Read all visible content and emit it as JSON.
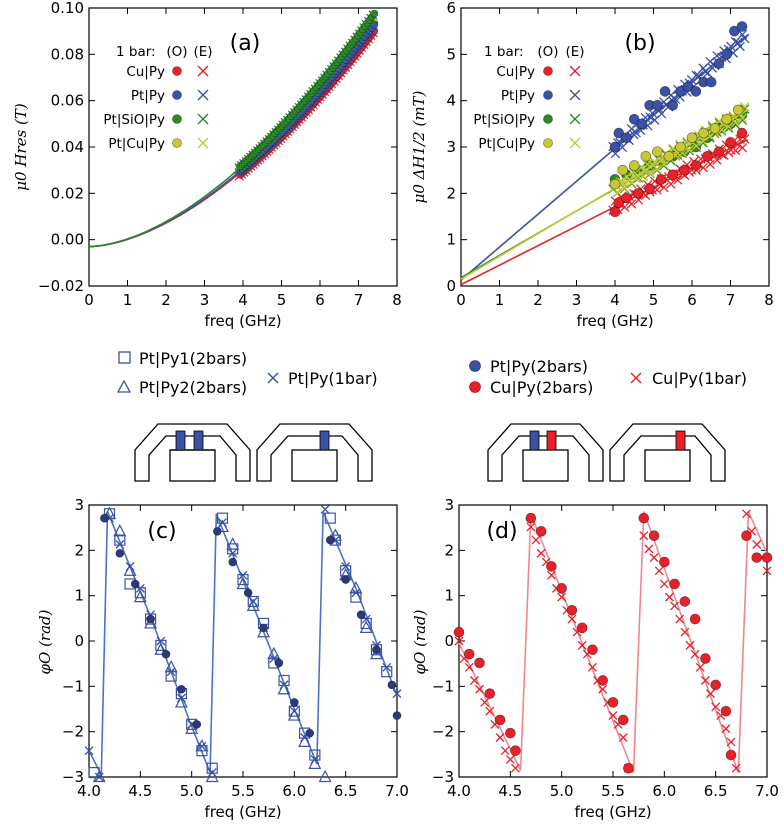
{
  "chart_data": [
    {
      "id": "a",
      "type": "scatter",
      "panel_label": "(a)",
      "xlabel": "freq (GHz)",
      "ylabel": "μ0 Hres (T)",
      "xlim": [
        0,
        8
      ],
      "ylim": [
        -0.02,
        0.1
      ],
      "xticks": [
        "0",
        "1",
        "2",
        "3",
        "4",
        "5",
        "6",
        "7",
        "8"
      ],
      "yticks": [
        "−0.02",
        "0.00",
        "0.02",
        "0.04",
        "0.06",
        "0.08",
        "0.10"
      ],
      "legend": {
        "title": "1 bar:",
        "col_o": "(O)",
        "col_e": "(E)",
        "entries": [
          {
            "name": "Cu|Py",
            "color": "#e8202a"
          },
          {
            "name": "Pt|Py",
            "color": "#3a52a4"
          },
          {
            "name": "Pt|SiO|Py",
            "color": "#2a8a2a"
          },
          {
            "name": "Pt|Cu|Py",
            "color": "#c8c832"
          }
        ]
      },
      "series": [
        {
          "name": "Cu|Py",
          "fit_x": [
            0,
            4,
            5,
            6,
            7.4
          ],
          "fit_y": [
            -0.003,
            0.028,
            0.043,
            0.06,
            0.091
          ]
        },
        {
          "name": "Pt|Py",
          "fit_x": [
            0,
            4,
            5,
            6,
            7.4
          ],
          "fit_y": [
            -0.003,
            0.028,
            0.044,
            0.062,
            0.093
          ]
        },
        {
          "name": "Pt|SiO|Py",
          "fit_x": [
            0,
            4,
            5,
            6,
            7.4
          ],
          "fit_y": [
            -0.003,
            0.029,
            0.046,
            0.065,
            0.097
          ]
        },
        {
          "name": "Pt|Cu|Py",
          "fit_x": [
            0,
            4,
            5,
            6,
            7.4
          ],
          "fit_y": [
            -0.003,
            0.027,
            0.042,
            0.06,
            0.092
          ]
        }
      ]
    },
    {
      "id": "b",
      "type": "scatter",
      "panel_label": "(b)",
      "xlabel": "freq (GHz)",
      "ylabel": "μ0 ΔH1/2 (mT)",
      "xlim": [
        0,
        8
      ],
      "ylim": [
        0,
        6
      ],
      "xticks": [
        "0",
        "1",
        "2",
        "3",
        "4",
        "5",
        "6",
        "7",
        "8"
      ],
      "yticks": [
        "0",
        "1",
        "2",
        "3",
        "4",
        "5",
        "6"
      ],
      "legend": {
        "title": "1 bar:",
        "col_o": "(O)",
        "col_e": "(E)",
        "entries": [
          {
            "name": "Cu|Py",
            "color": "#e8202a"
          },
          {
            "name": "Pt|Py",
            "color": "#3a52a4"
          },
          {
            "name": "Pt|SiO|Py",
            "color": "#2a8a2a"
          },
          {
            "name": "Pt|Cu|Py",
            "color": "#c8c832"
          }
        ]
      },
      "series": [
        {
          "name": "Pt|Py",
          "intercept": 0.13,
          "slope": 0.71,
          "o_points": [
            [
              4.0,
              3.0
            ],
            [
              4.1,
              3.3
            ],
            [
              4.3,
              3.2
            ],
            [
              4.5,
              3.6
            ],
            [
              4.7,
              3.5
            ],
            [
              4.9,
              3.9
            ],
            [
              5.1,
              3.9
            ],
            [
              5.3,
              4.2
            ],
            [
              5.5,
              3.9
            ],
            [
              5.7,
              4.2
            ],
            [
              5.9,
              4.3
            ],
            [
              6.1,
              4.2
            ],
            [
              6.3,
              4.4
            ],
            [
              6.5,
              4.4
            ],
            [
              6.7,
              4.8
            ],
            [
              6.9,
              5.0
            ],
            [
              7.1,
              5.5
            ],
            [
              7.3,
              5.6
            ]
          ]
        },
        {
          "name": "Pt|SiO|Py",
          "intercept": 0.18,
          "slope": 0.48,
          "o_points": [
            [
              4.0,
              2.3
            ],
            [
              4.3,
              2.4
            ],
            [
              4.6,
              2.5
            ],
            [
              4.9,
              2.6
            ],
            [
              5.2,
              2.7
            ],
            [
              5.5,
              2.8
            ],
            [
              5.8,
              2.9
            ],
            [
              6.1,
              3.0
            ],
            [
              6.4,
              3.2
            ],
            [
              6.7,
              3.4
            ],
            [
              7.0,
              3.5
            ],
            [
              7.3,
              3.7
            ]
          ]
        },
        {
          "name": "Pt|Cu|Py",
          "intercept": 0.15,
          "slope": 0.49,
          "o_points": [
            [
              4.0,
              2.2
            ],
            [
              4.2,
              2.5
            ],
            [
              4.5,
              2.6
            ],
            [
              4.8,
              2.8
            ],
            [
              5.1,
              2.9
            ],
            [
              5.4,
              2.8
            ],
            [
              5.7,
              3.0
            ],
            [
              6.0,
              3.2
            ],
            [
              6.3,
              3.3
            ],
            [
              6.6,
              3.4
            ],
            [
              6.9,
              3.6
            ],
            [
              7.2,
              3.8
            ]
          ]
        },
        {
          "name": "Cu|Py",
          "intercept": 0.03,
          "slope": 0.42,
          "o_points": [
            [
              4.0,
              1.6
            ],
            [
              4.1,
              1.8
            ],
            [
              4.3,
              1.9
            ],
            [
              4.6,
              2.0
            ],
            [
              4.9,
              2.1
            ],
            [
              5.2,
              2.3
            ],
            [
              5.5,
              2.4
            ],
            [
              5.8,
              2.5
            ],
            [
              6.1,
              2.6
            ],
            [
              6.4,
              2.8
            ],
            [
              6.7,
              2.9
            ],
            [
              7.0,
              3.1
            ],
            [
              7.3,
              3.3
            ]
          ]
        }
      ]
    },
    {
      "id": "c",
      "type": "scatter",
      "panel_label": "(c)",
      "xlabel": "freq (GHz)",
      "ylabel": "φO (rad)",
      "xlim": [
        4.0,
        7.0
      ],
      "ylim": [
        -3.1,
        3.1
      ],
      "xticks": [
        "4.0",
        "4.5",
        "5.0",
        "5.5",
        "6.0",
        "6.5",
        "7.0"
      ],
      "yticks": [
        "−3",
        "−2",
        "−1",
        "0",
        "1",
        "2",
        "3"
      ],
      "color": "#3a52a4",
      "series": [
        {
          "name": "Pt|Py(1bar)",
          "x": [
            4.0,
            4.1,
            4.2,
            4.3,
            4.4,
            4.5,
            4.6,
            4.7,
            4.8,
            4.9,
            5.0,
            5.1,
            5.2,
            5.3,
            5.4,
            5.5,
            5.6,
            5.7,
            5.8,
            5.9,
            6.0,
            6.1,
            6.2,
            6.3,
            6.4,
            6.5,
            6.6,
            6.7,
            6.8,
            6.9,
            7.0
          ],
          "y": [
            -2.5,
            -3.1,
            2.8,
            2.2,
            1.7,
            1.2,
            0.6,
            0.0,
            -0.7,
            -1.3,
            -1.9,
            -2.4,
            -3.0,
            2.7,
            2.0,
            1.5,
            0.9,
            0.3,
            -0.4,
            -1.0,
            -1.6,
            -2.2,
            -2.7,
            3.0,
            2.3,
            1.7,
            1.1,
            0.5,
            -0.1,
            -0.6,
            -1.2
          ]
        },
        {
          "name": "Pt|Py1(2bars)",
          "x": [
            4.05,
            4.2,
            4.3,
            4.4,
            4.5,
            4.6,
            4.7,
            4.8,
            4.9,
            5.0,
            5.1,
            5.2,
            5.3,
            5.4,
            5.5,
            5.6,
            5.7,
            5.8,
            5.9,
            6.0,
            6.1,
            6.2,
            6.35,
            6.4,
            6.5,
            6.6,
            6.7,
            6.8,
            6.9
          ],
          "y": [
            -3.0,
            2.9,
            2.3,
            1.3,
            1.1,
            0.5,
            -0.1,
            -0.8,
            -1.2,
            -1.9,
            -2.5,
            -2.9,
            2.8,
            2.1,
            1.4,
            0.9,
            0.4,
            -0.5,
            -0.9,
            -1.6,
            -2.1,
            -2.6,
            2.8,
            2.3,
            1.6,
            1.0,
            0.4,
            -0.2,
            -0.7
          ]
        },
        {
          "name": "Pt|Py2(2bars)",
          "x": [
            4.1,
            4.2,
            4.3,
            4.4,
            4.5,
            4.6,
            4.7,
            4.8,
            4.9,
            5.0,
            5.1,
            5.2,
            5.3,
            5.4,
            5.5,
            5.6,
            5.7,
            5.8,
            5.9,
            6.0,
            6.1,
            6.2,
            6.3,
            6.4,
            6.5,
            6.6,
            6.7,
            6.8
          ],
          "y": [
            -3.1,
            2.9,
            2.5,
            1.6,
            1.0,
            0.4,
            -0.2,
            -0.6,
            -1.4,
            -2.0,
            -2.4,
            -3.1,
            2.6,
            2.2,
            1.3,
            0.8,
            0.2,
            -0.3,
            -1.1,
            -1.7,
            -2.3,
            -2.8,
            -3.1,
            2.4,
            1.5,
            1.2,
            0.3,
            -0.3
          ]
        },
        {
          "name": "Pt|Py(2bars)",
          "x": [
            4.15,
            4.3,
            4.45,
            4.6,
            4.75,
            4.9,
            5.05,
            5.25,
            5.4,
            5.55,
            5.7,
            5.85,
            6.0,
            6.15,
            6.35,
            6.5,
            6.65,
            6.8,
            6.95,
            7.0
          ],
          "y": [
            2.8,
            2.0,
            1.3,
            0.5,
            -0.3,
            -1.1,
            -1.9,
            2.5,
            1.8,
            1.1,
            0.3,
            -0.5,
            -1.4,
            -2.1,
            2.3,
            1.4,
            0.6,
            -0.2,
            -1.0,
            -1.7
          ]
        }
      ],
      "fit_x": [
        4.0,
        4.12,
        4.18,
        4.6,
        5.0,
        5.18,
        5.24,
        5.6,
        6.0,
        6.22,
        6.28,
        6.6,
        7.0
      ],
      "fit_y": [
        -2.5,
        -3.05,
        2.95,
        0.55,
        -1.95,
        -3.0,
        2.9,
        0.8,
        -1.55,
        -2.8,
        2.95,
        1.2,
        -1.25
      ]
    },
    {
      "id": "d",
      "type": "scatter",
      "panel_label": "(d)",
      "xlabel": "freq (GHz)",
      "ylabel": "φO (rad)",
      "xlim": [
        4.0,
        7.0
      ],
      "ylim": [
        -3.1,
        3.1
      ],
      "xticks": [
        "4.0",
        "4.5",
        "5.0",
        "5.5",
        "6.0",
        "6.5",
        "7.0"
      ],
      "yticks": [
        "−3",
        "−2",
        "−1",
        "0",
        "1",
        "2",
        "3"
      ],
      "color": "#e8202a",
      "series": [
        {
          "name": "Cu|Py(1bar)",
          "x": [
            4.0,
            4.05,
            4.1,
            4.15,
            4.2,
            4.25,
            4.3,
            4.35,
            4.4,
            4.45,
            4.5,
            4.55,
            4.7,
            4.75,
            4.8,
            4.85,
            4.9,
            4.95,
            5.0,
            5.05,
            5.1,
            5.15,
            5.2,
            5.25,
            5.3,
            5.35,
            5.4,
            5.45,
            5.5,
            5.55,
            5.6,
            5.65,
            5.8,
            5.85,
            5.9,
            5.95,
            6.0,
            6.05,
            6.1,
            6.15,
            6.2,
            6.25,
            6.3,
            6.35,
            6.4,
            6.45,
            6.5,
            6.55,
            6.6,
            6.65,
            6.7,
            6.8,
            6.85,
            6.9,
            6.95,
            7.0
          ],
          "y": [
            0.0,
            -0.4,
            -0.6,
            -0.9,
            -1.1,
            -1.4,
            -1.6,
            -1.9,
            -2.2,
            -2.5,
            -2.7,
            -2.9,
            2.6,
            2.3,
            2.0,
            1.8,
            1.5,
            1.2,
            1.0,
            0.7,
            0.5,
            0.2,
            -0.1,
            -0.3,
            -0.6,
            -0.9,
            -1.1,
            -1.4,
            -1.7,
            -1.9,
            -2.2,
            -2.9,
            2.4,
            2.1,
            1.9,
            1.6,
            1.3,
            1.0,
            0.8,
            0.5,
            0.2,
            -0.1,
            -0.3,
            -0.6,
            -0.9,
            -1.2,
            -1.5,
            -1.7,
            -2.0,
            -2.3,
            -2.9,
            2.9,
            2.5,
            2.2,
            1.9,
            1.6
          ]
        },
        {
          "name": "Cu|Py(2bars)",
          "x": [
            4.0,
            4.1,
            4.2,
            4.3,
            4.4,
            4.5,
            4.55,
            4.7,
            4.8,
            4.9,
            5.0,
            5.1,
            5.2,
            5.3,
            5.4,
            5.5,
            5.6,
            5.65,
            5.8,
            5.9,
            6.0,
            6.1,
            6.2,
            6.3,
            6.4,
            6.5,
            6.6,
            6.65,
            6.8,
            6.9,
            7.0
          ],
          "y": [
            0.2,
            -0.3,
            -0.5,
            -1.2,
            -1.8,
            -2.1,
            -2.5,
            2.8,
            2.5,
            1.7,
            1.2,
            0.7,
            0.3,
            -0.2,
            -0.9,
            -1.4,
            -1.8,
            -2.9,
            2.8,
            2.4,
            1.8,
            1.3,
            0.9,
            0.5,
            -0.4,
            -1.0,
            -1.6,
            -2.6,
            2.4,
            1.9,
            1.9
          ]
        }
      ],
      "fit_x": [
        4.0,
        4.6,
        4.7,
        5.7,
        5.8,
        6.72,
        6.82,
        7.0
      ],
      "fit_y": [
        -0.05,
        -2.95,
        2.9,
        -3.0,
        2.95,
        -3.0,
        2.95,
        2.0
      ]
    }
  ],
  "legend_c": {
    "sq": "Pt|Py1(2bars)",
    "tri": "Pt|Py2(2bars)",
    "x": "Pt|Py(1bar)"
  },
  "legend_d": {
    "dot_blue": "Pt|Py(2bars)",
    "dot_red": "Cu|Py(2bars)",
    "x": "Cu|Py(1bar)"
  },
  "colors": {
    "blue": "#3a52a4",
    "red": "#e8202a",
    "green": "#2a8a2a",
    "yellow": "#c8c832",
    "fit_blue": "#4a74c4",
    "fit_red": "#f08890"
  }
}
